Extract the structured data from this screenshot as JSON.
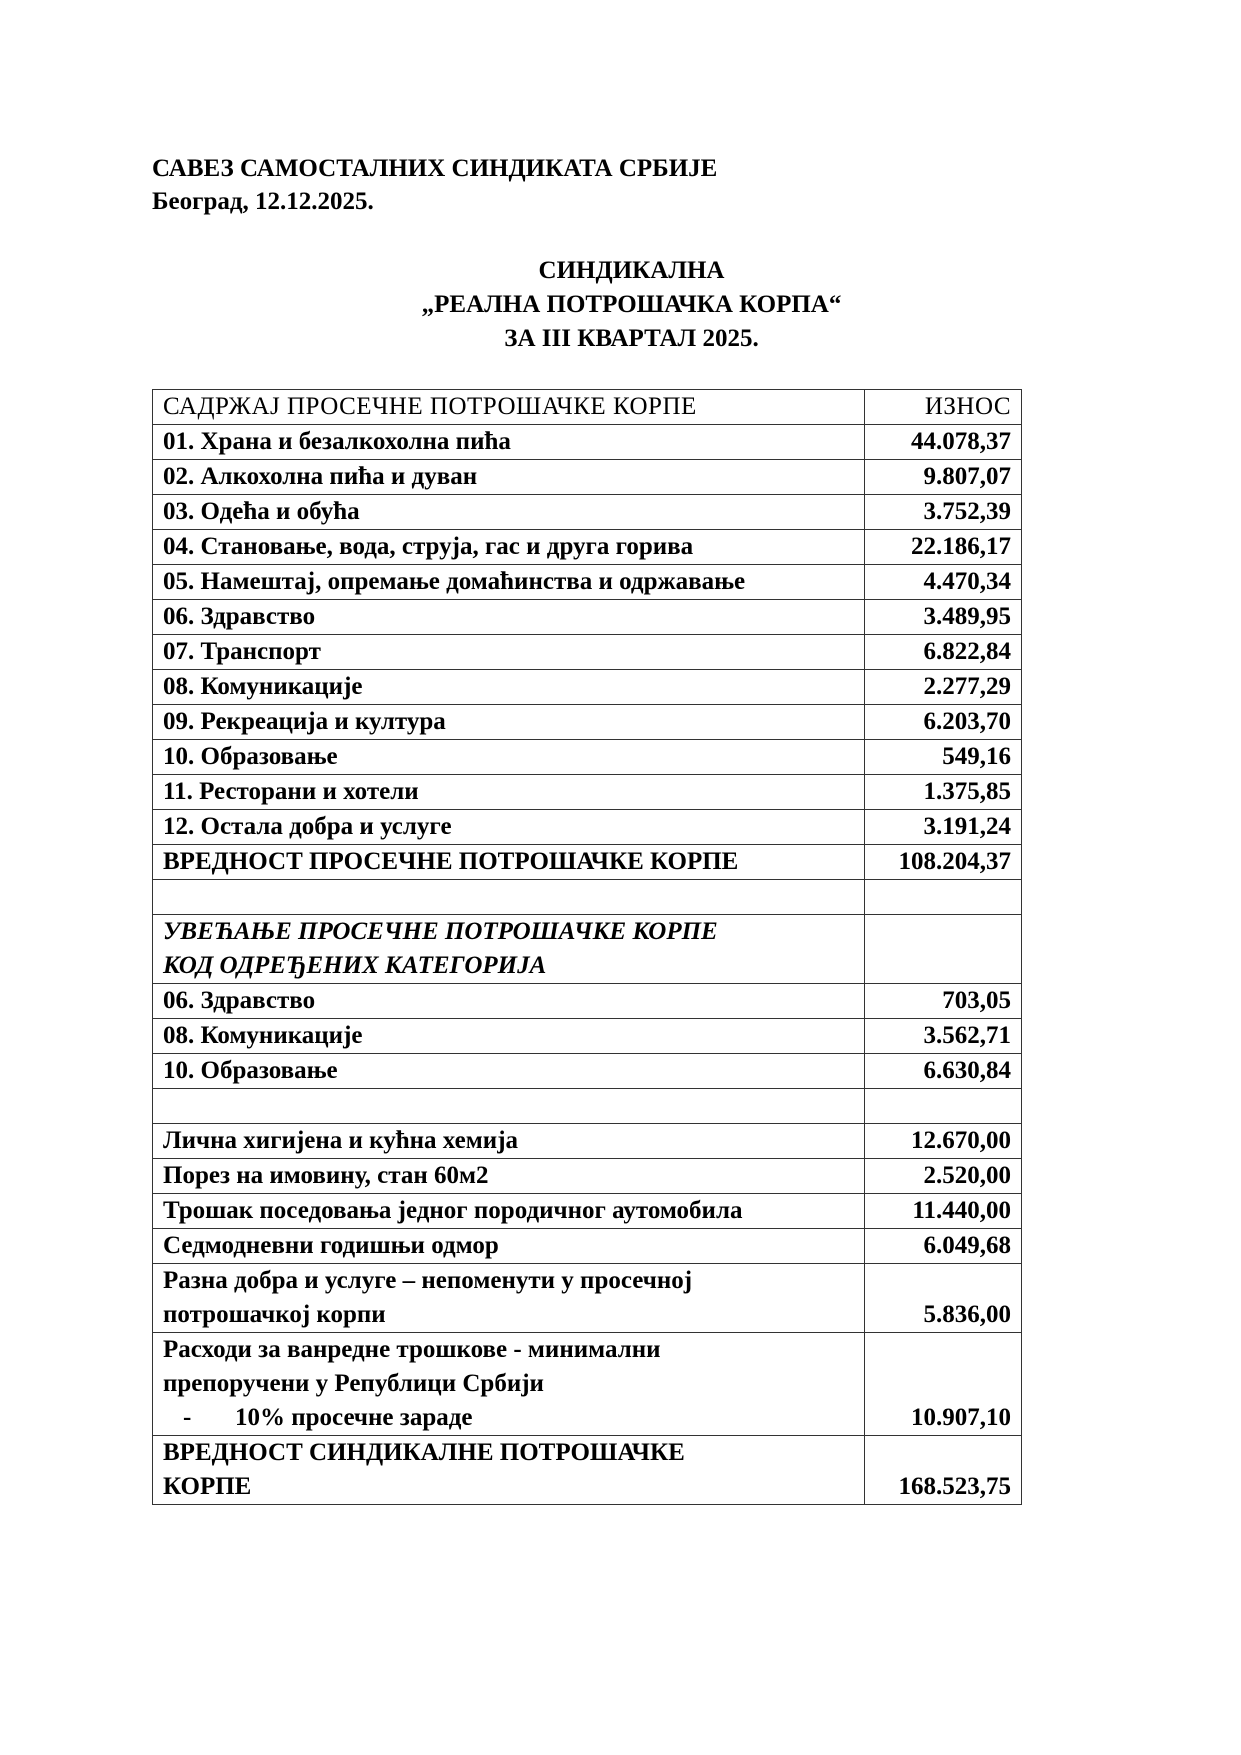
{
  "header": {
    "organization": "САВЕЗ САМОСТАЛНИХ СИНДИКАТА СРБИЈЕ",
    "place_date": "Београд, 12.12.2025."
  },
  "title": {
    "line1": "СИНДИКАЛНА",
    "line2": "„РЕАЛНА ПОТРОШАЧКА КОРПА“",
    "line3": "ЗА III КВАРТАЛ 2025."
  },
  "table": {
    "col_content": "САДРЖАЈ ПРОСЕЧНЕ ПОТРОШАЧКЕ КОРПЕ",
    "col_amount": "ИЗНОС",
    "items": [
      {
        "label": "01. Храна и безалкохолна пића",
        "value": "44.078,37"
      },
      {
        "label": "02. Алкохолна пића и дуван",
        "value": "9.807,07"
      },
      {
        "label": "03. Одећа и обућа",
        "value": "3.752,39"
      },
      {
        "label": "04. Становање, вода, струја, гас и друга горива",
        "value": "22.186,17"
      },
      {
        "label": "05. Намештај, опремање домаћинства и одржавање",
        "value": "4.470,34"
      },
      {
        "label": "06. Здравство",
        "value": "3.489,95"
      },
      {
        "label": "07. Транспорт",
        "value": "6.822,84"
      },
      {
        "label": "08. Комуникације",
        "value": "2.277,29"
      },
      {
        "label": "09. Рекреација и култура",
        "value": "6.203,70"
      },
      {
        "label": "10. Образовање",
        "value": "549,16"
      },
      {
        "label": "11. Ресторани и хотели",
        "value": "1.375,85"
      },
      {
        "label": "12. Остала добра и услуге",
        "value": "3.191,24"
      }
    ],
    "avg_total": {
      "label": "ВРЕДНОСТ ПРОСЕЧНЕ ПОТРОШАЧКЕ КОРПЕ",
      "value": "108.204,37"
    },
    "increase_heading_line1": "УВЕЋАЊЕ ПРОСЕЧНЕ ПОТРОШАЧКЕ КОРПЕ",
    "increase_heading_line2": "КОД ОДРЕЂЕНИХ КАТЕГОРИЈА",
    "increases": [
      {
        "label": "06. Здравство",
        "value": "703,05"
      },
      {
        "label": "08. Комуникације",
        "value": "3.562,71"
      },
      {
        "label": "10. Образовање",
        "value": "6.630,84"
      }
    ],
    "extras": [
      {
        "label": "Лична хигијена и кућна хемија",
        "value": "12.670,00"
      },
      {
        "label": "Порез на имовину, стан 60м2",
        "value": "2.520,00"
      },
      {
        "label": "Трошак поседовања једног породичног аутомобила",
        "value": "11.440,00"
      },
      {
        "label": "Седмодневни годишњи одмор",
        "value": "6.049,68"
      }
    ],
    "misc": {
      "line1": "Разна добра и услуге – непоменути у просечној",
      "line2": "потрошачкој корпи",
      "value": "5.836,00"
    },
    "emergency": {
      "line1": "Расходи за ванредне трошкове - минимални",
      "line2": "препоручени у Републици Србији",
      "dash": "-",
      "line3": "10% просечне зараде",
      "value": "10.907,10"
    },
    "union_total": {
      "line1": "ВРЕДНОСТ СИНДИКАЛНЕ ПОТРОШАЧКЕ",
      "line2": "КОРПЕ",
      "value": "168.523,75"
    }
  }
}
